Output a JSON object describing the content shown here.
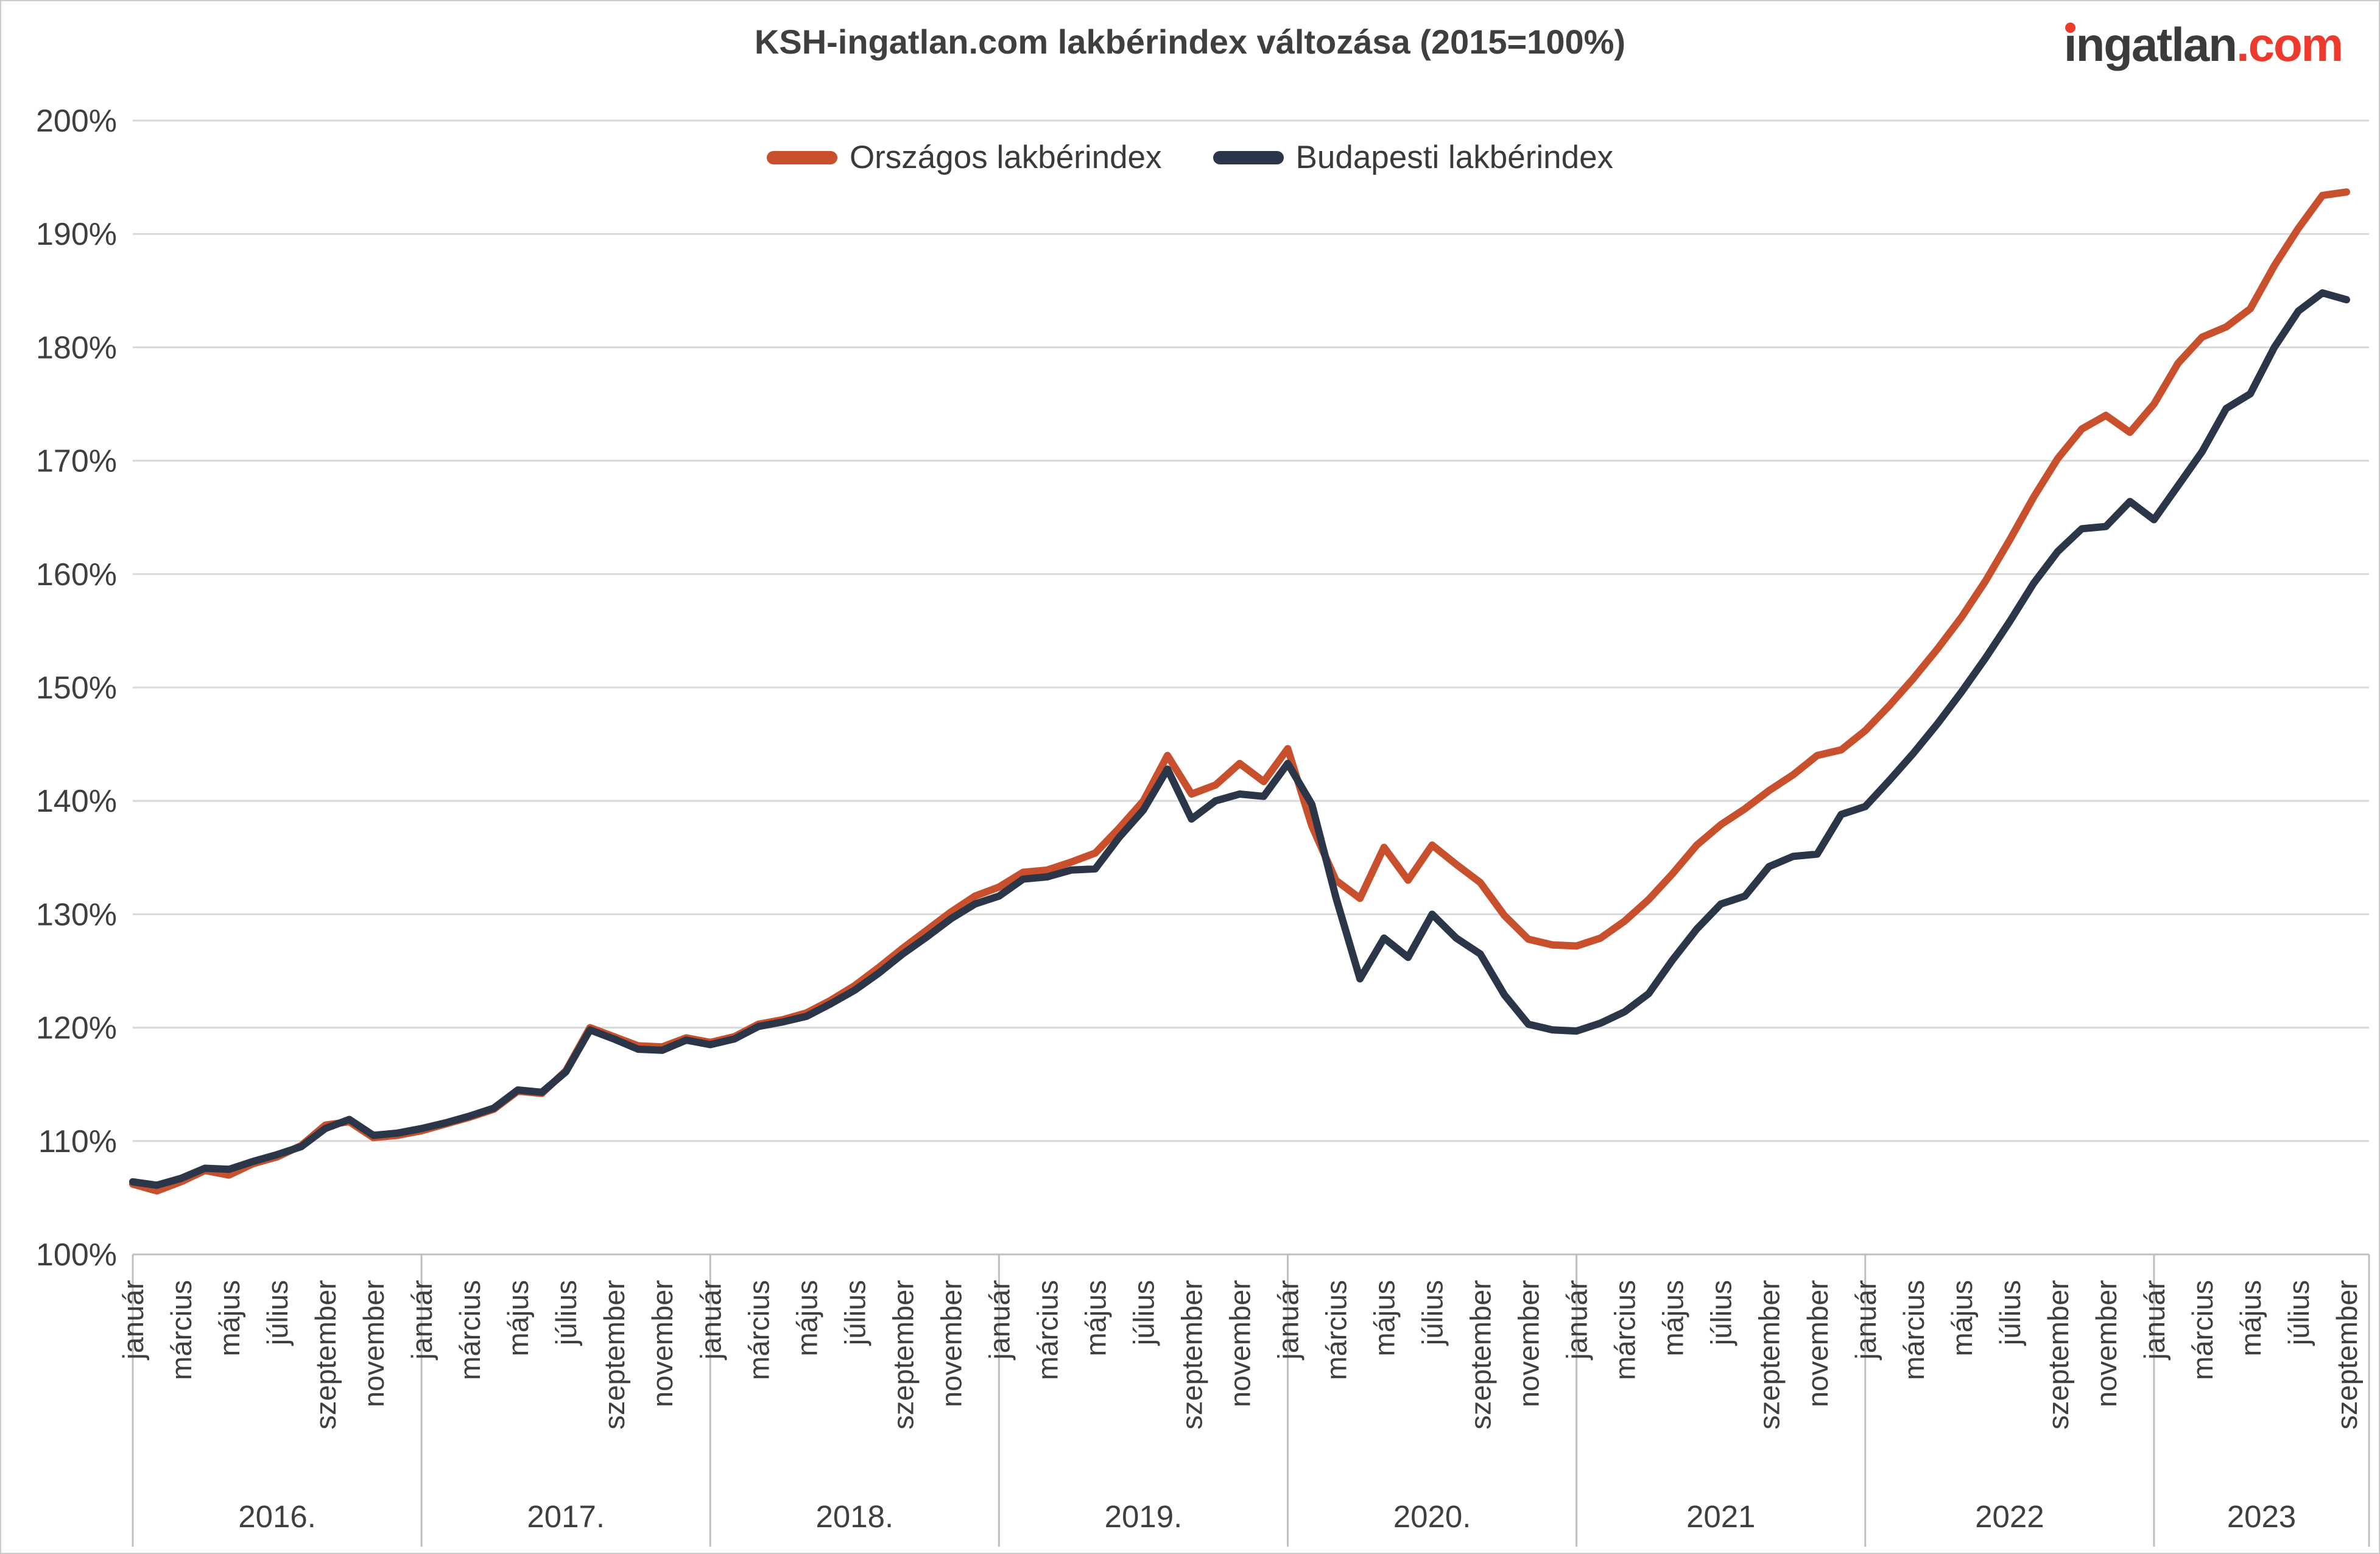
{
  "header": {
    "title": "KSH-ingatlan.com lakbérindex változása (2015=100%)",
    "logo_main": "ingatlan",
    "logo_suffix": ".com",
    "logo_text_color": "#3b3b3b",
    "logo_accent_color": "#ee3a2c"
  },
  "legend": {
    "position": "top",
    "items": [
      {
        "label": "Országos lakbérindex",
        "color": "#c8502d"
      },
      {
        "label": "Budapesti lakbérindex",
        "color": "#2b3648"
      }
    ]
  },
  "y_axis": {
    "tick_labels": [
      "100%",
      "110%",
      "120%",
      "130%",
      "140%",
      "150%",
      "160%",
      "170%",
      "180%",
      "190%",
      "200%"
    ],
    "min": 100,
    "max": 200,
    "step": 10,
    "label_color": "#3f3f3f",
    "gridline_color": "#d9d9d9"
  },
  "x_axis": {
    "axis_line_color": "#bfbfbf",
    "label_color": "#3f3f3f",
    "years": [
      {
        "label": "2016.",
        "months": [
          "január",
          "március",
          "május",
          "július",
          "szeptember",
          "november"
        ]
      },
      {
        "label": "2017.",
        "months": [
          "január",
          "március",
          "május",
          "július",
          "szeptember",
          "november"
        ]
      },
      {
        "label": "2018.",
        "months": [
          "január",
          "március",
          "május",
          "július",
          "szeptember",
          "november"
        ]
      },
      {
        "label": "2019.",
        "months": [
          "január",
          "március",
          "május",
          "július",
          "szeptember",
          "november"
        ]
      },
      {
        "label": "2020.",
        "months": [
          "január",
          "március",
          "május",
          "július",
          "szeptember",
          "november"
        ]
      },
      {
        "label": "2021",
        "months": [
          "január",
          "március",
          "május",
          "július",
          "szeptember",
          "november"
        ]
      },
      {
        "label": "2022",
        "months": [
          "január",
          "március",
          "május",
          "július",
          "szeptember",
          "november"
        ]
      },
      {
        "label": "2023",
        "months": [
          "január",
          "március",
          "május",
          "július",
          "szeptember"
        ]
      }
    ]
  },
  "chart_data": {
    "type": "line",
    "title": "KSH-ingatlan.com lakbérindex változása (2015=100%)",
    "xlabel": "",
    "ylabel": "",
    "ylim": [
      100,
      200
    ],
    "grid": true,
    "legend_position": "top",
    "x_period": "monthly from 2016 január to 2023 szeptember (93 points)",
    "months_per_year": 12,
    "last_year_months": 9,
    "series": [
      {
        "name": "Országos lakbérindex",
        "color": "#c8502d",
        "values": [
          106.2,
          105.6,
          106.4,
          107.4,
          107.0,
          108.0,
          108.6,
          109.6,
          111.4,
          111.7,
          110.3,
          110.5,
          110.9,
          111.5,
          112.1,
          112.8,
          114.4,
          114.2,
          116.2,
          120.0,
          119.2,
          118.4,
          118.3,
          119.1,
          118.7,
          119.2,
          120.3,
          120.7,
          121.3,
          122.4,
          123.7,
          125.3,
          127.0,
          128.6,
          130.2,
          131.6,
          132.4,
          133.7,
          133.9,
          134.6,
          135.4,
          137.6,
          140.0,
          144.0,
          140.6,
          141.4,
          143.3,
          141.7,
          144.6,
          137.8,
          133.0,
          131.4,
          135.9,
          133.0,
          136.1,
          134.4,
          132.8,
          129.9,
          127.8,
          127.3,
          127.2,
          127.9,
          129.4,
          131.3,
          133.6,
          136.1,
          137.9,
          139.3,
          140.9,
          142.3,
          144.0,
          144.5,
          146.2,
          148.4,
          150.8,
          153.4,
          156.2,
          159.4,
          163.0,
          166.8,
          170.2,
          172.8,
          174.0,
          172.5,
          175.0,
          178.6,
          180.9,
          181.8,
          183.4,
          187.2,
          190.5,
          193.4,
          193.7
        ]
      },
      {
        "name": "Budapesti lakbérindex",
        "color": "#2b3648",
        "values": [
          106.4,
          106.1,
          106.7,
          107.6,
          107.5,
          108.2,
          108.8,
          109.5,
          111.1,
          111.9,
          110.5,
          110.7,
          111.1,
          111.6,
          112.2,
          112.9,
          114.5,
          114.3,
          116.1,
          119.8,
          119.0,
          118.1,
          118.0,
          118.9,
          118.5,
          119.0,
          120.1,
          120.5,
          121.0,
          122.1,
          123.3,
          124.8,
          126.5,
          128.0,
          129.6,
          130.9,
          131.6,
          133.1,
          133.3,
          133.9,
          134.0,
          136.8,
          139.2,
          142.8,
          138.4,
          140.0,
          140.6,
          140.4,
          143.3,
          139.7,
          131.5,
          124.3,
          127.9,
          126.2,
          130.0,
          127.9,
          126.5,
          122.9,
          120.3,
          119.8,
          119.7,
          120.4,
          121.4,
          123.0,
          126.0,
          128.7,
          130.9,
          131.6,
          134.2,
          135.1,
          135.3,
          138.8,
          139.5,
          141.8,
          144.2,
          146.8,
          149.6,
          152.6,
          155.8,
          159.2,
          162.0,
          164.0,
          164.2,
          166.4,
          164.8,
          167.8,
          170.8,
          174.6,
          175.9,
          180.0,
          183.2,
          184.8,
          184.2
        ]
      }
    ]
  }
}
